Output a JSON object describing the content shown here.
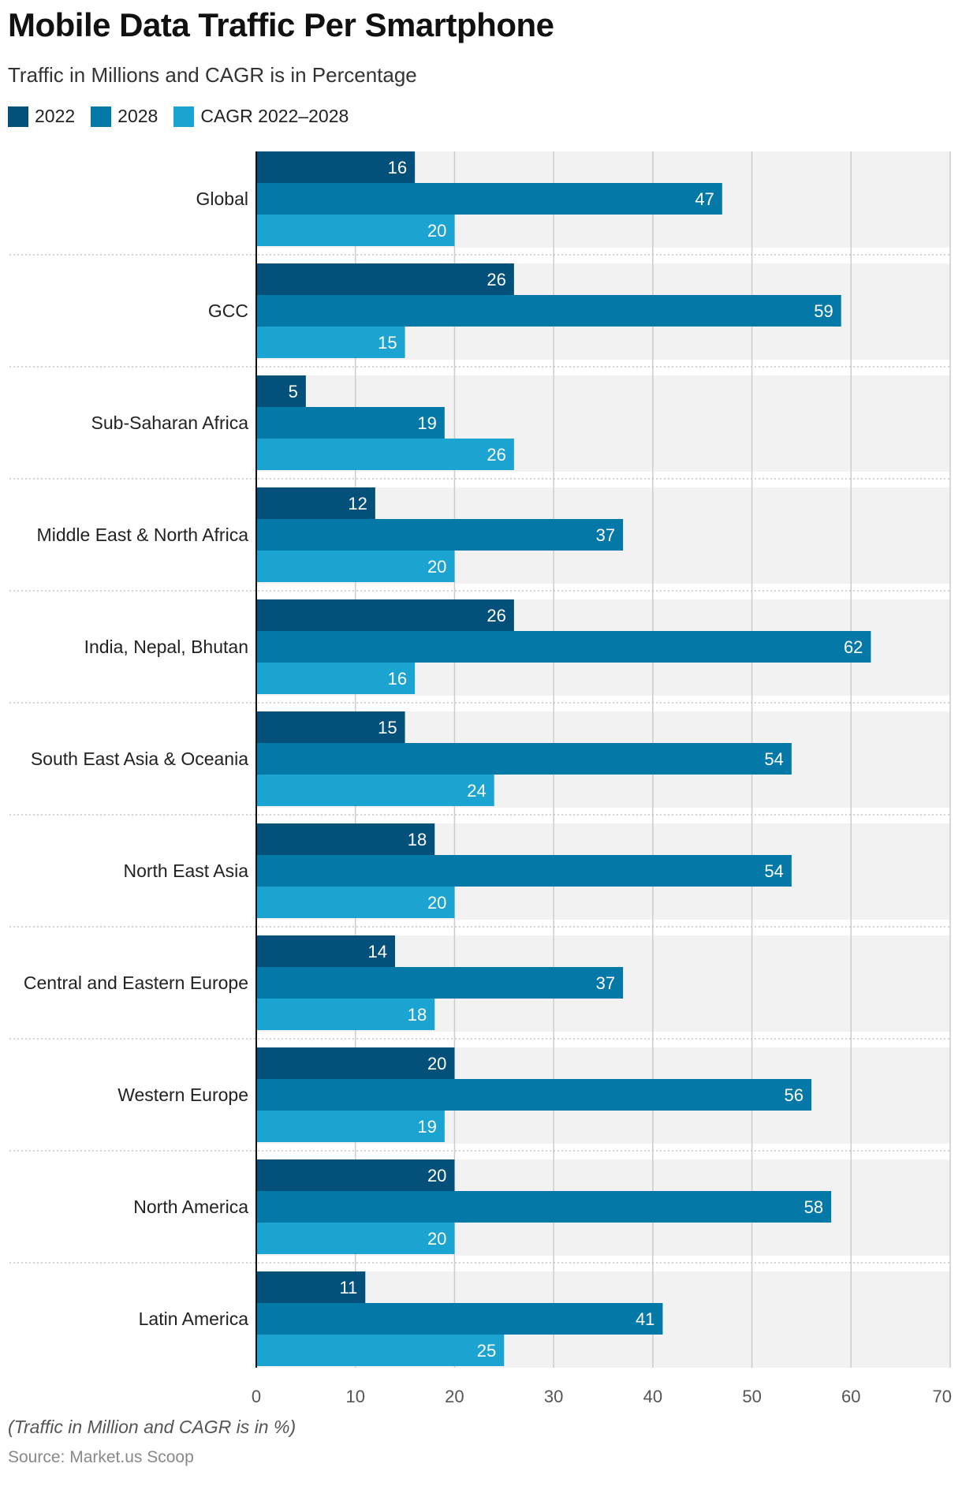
{
  "chart_data": {
    "type": "bar",
    "orientation": "horizontal",
    "title": "Mobile Data Traffic Per Smartphone",
    "subtitle": "Traffic in Millions and CAGR is in Percentage",
    "categories": [
      "Global",
      "GCC",
      "Sub-Saharan Africa",
      "Middle East & North Africa",
      "India, Nepal, Bhutan",
      "South East Asia & Oceania",
      "North East Asia",
      "Central and Eastern Europe",
      "Western Europe",
      "North America",
      "Latin America"
    ],
    "series": [
      {
        "name": "2022",
        "color": "#03507A",
        "values": [
          16,
          26,
          5,
          12,
          26,
          15,
          18,
          14,
          20,
          20,
          11
        ]
      },
      {
        "name": "2028",
        "color": "#0479A8",
        "values": [
          47,
          59,
          19,
          37,
          62,
          54,
          54,
          37,
          56,
          58,
          41
        ]
      },
      {
        "name": "CAGR 2022–2028",
        "color": "#1BA3D1",
        "values": [
          20,
          15,
          26,
          20,
          16,
          24,
          20,
          18,
          19,
          20,
          25
        ]
      }
    ],
    "xlim": [
      0,
      70
    ],
    "xticks": [
      0,
      10,
      20,
      30,
      40,
      50,
      60,
      70
    ],
    "grid": true,
    "legend_position": "top-left"
  },
  "footnote": "(Traffic in Million and CAGR is in %)",
  "source": "Source: Market.us Scoop"
}
